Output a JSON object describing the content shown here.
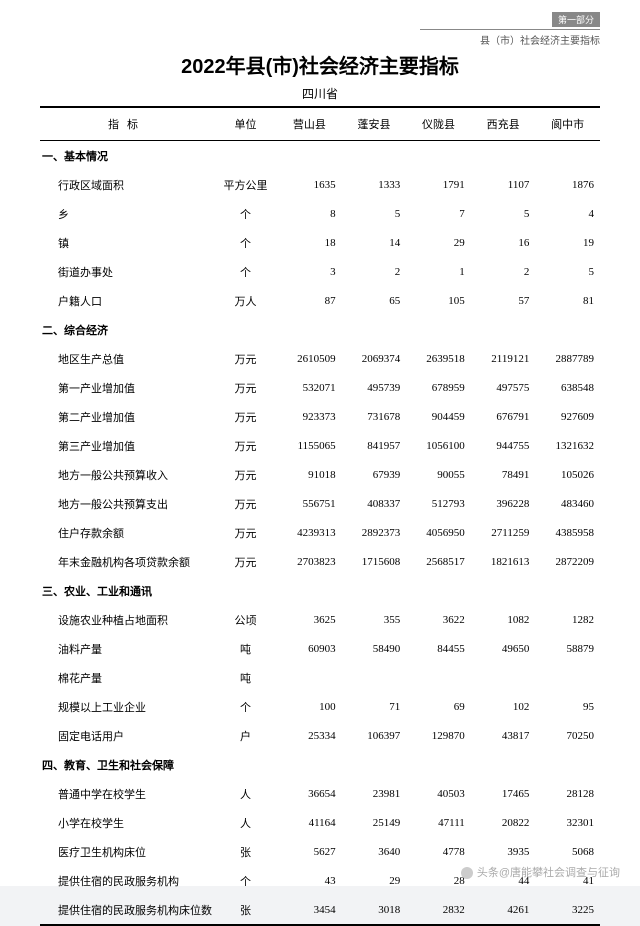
{
  "header": {
    "badge": "第一部分",
    "subtitle_line": "县（市）社会经济主要指标"
  },
  "title": "2022年县(市)社会经济主要指标",
  "province": "四川省",
  "columns": {
    "indicator": "指标",
    "unit": "单位",
    "c1": "营山县",
    "c2": "蓬安县",
    "c3": "仪陇县",
    "c4": "西充县",
    "c5": "阆中市"
  },
  "sections": {
    "s1": "一、基本情况",
    "s2": "二、综合经济",
    "s3": "三、农业、工业和通讯",
    "s4": "四、教育、卫生和社会保障"
  },
  "rows": {
    "r1": {
      "label": "行政区域面积",
      "unit": "平方公里",
      "v": [
        "1635",
        "1333",
        "1791",
        "1107",
        "1876"
      ]
    },
    "r2": {
      "label": "乡",
      "unit": "个",
      "v": [
        "8",
        "5",
        "7",
        "5",
        "4"
      ]
    },
    "r3": {
      "label": "镇",
      "unit": "个",
      "v": [
        "18",
        "14",
        "29",
        "16",
        "19"
      ]
    },
    "r4": {
      "label": "街道办事处",
      "unit": "个",
      "v": [
        "3",
        "2",
        "1",
        "2",
        "5"
      ]
    },
    "r5": {
      "label": "户籍人口",
      "unit": "万人",
      "v": [
        "87",
        "65",
        "105",
        "57",
        "81"
      ]
    },
    "r6": {
      "label": "地区生产总值",
      "unit": "万元",
      "v": [
        "2610509",
        "2069374",
        "2639518",
        "2119121",
        "2887789"
      ]
    },
    "r7": {
      "label": "第一产业增加值",
      "unit": "万元",
      "v": [
        "532071",
        "495739",
        "678959",
        "497575",
        "638548"
      ]
    },
    "r8": {
      "label": "第二产业增加值",
      "unit": "万元",
      "v": [
        "923373",
        "731678",
        "904459",
        "676791",
        "927609"
      ]
    },
    "r9": {
      "label": "第三产业增加值",
      "unit": "万元",
      "v": [
        "1155065",
        "841957",
        "1056100",
        "944755",
        "1321632"
      ]
    },
    "r10": {
      "label": "地方一般公共预算收入",
      "unit": "万元",
      "v": [
        "91018",
        "67939",
        "90055",
        "78491",
        "105026"
      ]
    },
    "r11": {
      "label": "地方一般公共预算支出",
      "unit": "万元",
      "v": [
        "556751",
        "408337",
        "512793",
        "396228",
        "483460"
      ]
    },
    "r12": {
      "label": "住户存款余额",
      "unit": "万元",
      "v": [
        "4239313",
        "2892373",
        "4056950",
        "2711259",
        "4385958"
      ]
    },
    "r13": {
      "label": "年末金融机构各项贷款余额",
      "unit": "万元",
      "v": [
        "2703823",
        "1715608",
        "2568517",
        "1821613",
        "2872209"
      ]
    },
    "r14": {
      "label": "设施农业种植占地面积",
      "unit": "公顷",
      "v": [
        "3625",
        "355",
        "3622",
        "1082",
        "1282"
      ]
    },
    "r15": {
      "label": "油料产量",
      "unit": "吨",
      "v": [
        "60903",
        "58490",
        "84455",
        "49650",
        "58879"
      ]
    },
    "r16": {
      "label": "棉花产量",
      "unit": "吨",
      "v": [
        "",
        "",
        "",
        "",
        ""
      ]
    },
    "r17": {
      "label": "规模以上工业企业",
      "unit": "个",
      "v": [
        "100",
        "71",
        "69",
        "102",
        "95"
      ]
    },
    "r18": {
      "label": "固定电话用户",
      "unit": "户",
      "v": [
        "25334",
        "106397",
        "129870",
        "43817",
        "70250"
      ]
    },
    "r19": {
      "label": "普通中学在校学生",
      "unit": "人",
      "v": [
        "36654",
        "23981",
        "40503",
        "17465",
        "28128"
      ]
    },
    "r20": {
      "label": "小学在校学生",
      "unit": "人",
      "v": [
        "41164",
        "25149",
        "47111",
        "20822",
        "32301"
      ]
    },
    "r21": {
      "label": "医疗卫生机构床位",
      "unit": "张",
      "v": [
        "5627",
        "3640",
        "4778",
        "3935",
        "5068"
      ]
    },
    "r22": {
      "label": "提供住宿的民政服务机构",
      "unit": "个",
      "v": [
        "43",
        "29",
        "28",
        "44",
        "41"
      ]
    },
    "r23": {
      "label": "提供住宿的民政服务机构床位数",
      "unit": "张",
      "v": [
        "3454",
        "3018",
        "2832",
        "4261",
        "3225"
      ]
    }
  },
  "watermark": "头条@唐能攀社会调查与征询"
}
